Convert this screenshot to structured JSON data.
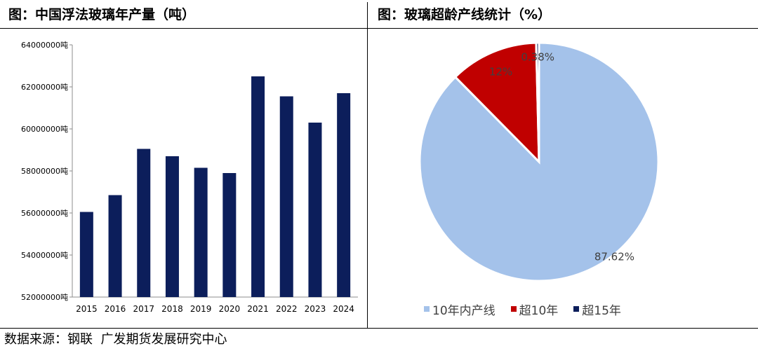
{
  "header": {
    "left_title": "图：中国浮法玻璃年产量（吨）",
    "right_title": "图：玻璃超龄产线统计（%）"
  },
  "footer": {
    "source": "数据来源：钢联  广发期货发展研究中心"
  },
  "colors": {
    "bar": "#0c1e5b",
    "pie_within10": "#a4c2ea",
    "pie_over10": "#c00000",
    "pie_over15": "#0c1e5b"
  },
  "chart_data": [
    {
      "type": "bar",
      "title": "图：中国浮法玻璃年产量（吨）",
      "categories": [
        "2015",
        "2016",
        "2017",
        "2018",
        "2019",
        "2020",
        "2021",
        "2022",
        "2023",
        "2024"
      ],
      "values": [
        56050000,
        56850000,
        59050000,
        58700000,
        58150000,
        57900000,
        62500000,
        61550000,
        60300000,
        61700000
      ],
      "ylim": [
        52000000,
        64000000
      ],
      "yticks": [
        52000000,
        54000000,
        56000000,
        58000000,
        60000000,
        62000000,
        64000000
      ],
      "ytick_labels": [
        "52000000吨",
        "54000000吨",
        "56000000吨",
        "58000000吨",
        "60000000吨",
        "62000000吨",
        "64000000吨"
      ],
      "grid": false
    },
    {
      "type": "pie",
      "title": "图：玻璃超龄产线统计（%）",
      "labels": [
        "10年内产线",
        "超10年",
        "超15年"
      ],
      "values": [
        87.62,
        12,
        0.38
      ],
      "value_labels": [
        "87.62%",
        "12%",
        "0.38%"
      ],
      "legend": "bottom"
    }
  ]
}
